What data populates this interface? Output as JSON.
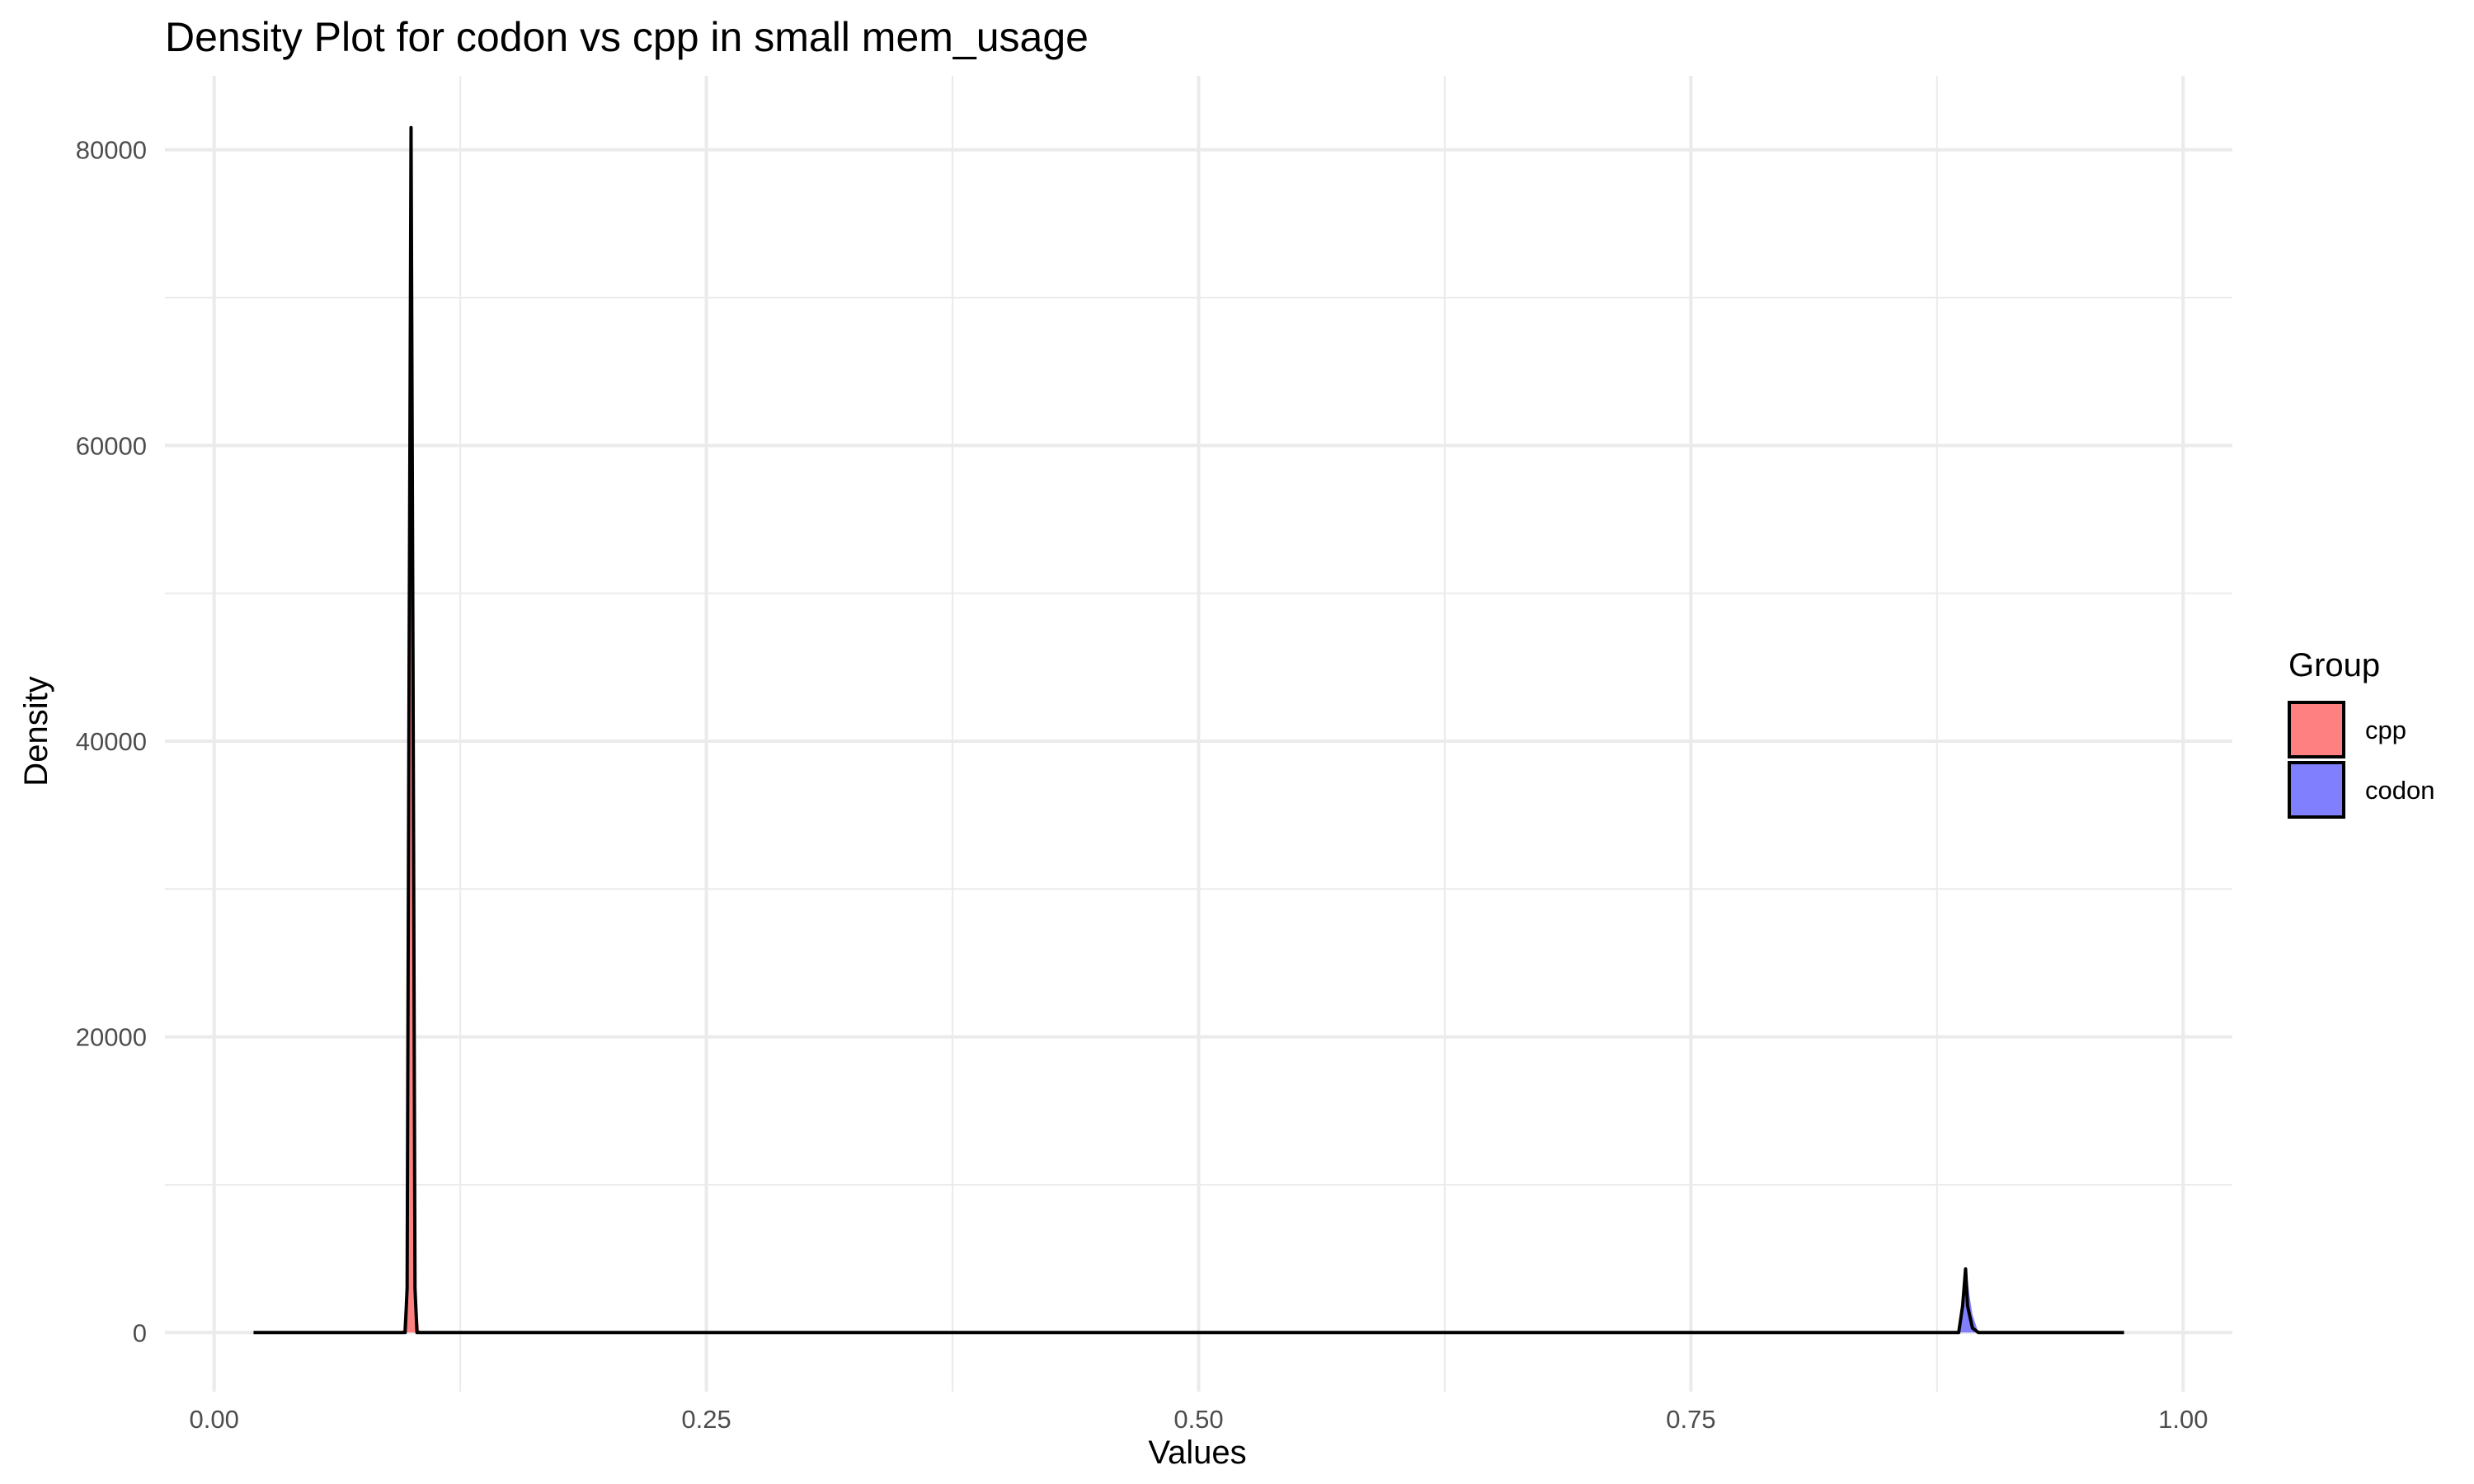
{
  "chart_data": {
    "type": "area",
    "title": "Density Plot for codon vs cpp in small mem_usage",
    "xlabel": "Values",
    "ylabel": "Density",
    "xlim": [
      -0.025,
      1.025
    ],
    "ylim": [
      -4000,
      85000
    ],
    "x_ticks": [
      0.0,
      0.25,
      0.5,
      0.75,
      1.0
    ],
    "x_tick_labels": [
      "0.00",
      "0.25",
      "0.50",
      "0.75",
      "1.00"
    ],
    "y_ticks": [
      0,
      20000,
      40000,
      60000,
      80000
    ],
    "y_tick_labels": [
      "0",
      "20000",
      "40000",
      "60000",
      "80000"
    ],
    "grid": true,
    "legend": {
      "title": "Group",
      "position": "right",
      "items": [
        {
          "label": "cpp",
          "color": "#ff8080"
        },
        {
          "label": "codon",
          "color": "#8080ff"
        }
      ]
    },
    "series": [
      {
        "name": "cpp",
        "color": "#ff8080",
        "x": [
          0.02,
          0.095,
          0.096,
          0.0975,
          0.099,
          0.1,
          0.101,
          0.1025,
          0.104,
          0.105,
          0.97
        ],
        "y": [
          0,
          0,
          200,
          3000,
          25000,
          58000,
          25000,
          3000,
          200,
          0,
          0
        ]
      },
      {
        "name": "codon",
        "color": "#8080ff",
        "x": [
          0.02,
          0.886,
          0.887,
          0.8885,
          0.8895,
          0.89,
          0.8905,
          0.8915,
          0.893,
          0.896,
          0.97
        ],
        "y": [
          0,
          0,
          300,
          2500,
          3600,
          3700,
          3600,
          2500,
          1200,
          0,
          0
        ]
      },
      {
        "name": "",
        "color": "#000000",
        "x": [
          0.02,
          0.097,
          0.098,
          0.099,
          0.1,
          0.101,
          0.102,
          0.103,
          0.886,
          0.888,
          0.8895,
          0.8905,
          0.893,
          0.896,
          0.97
        ],
        "y": [
          0,
          0,
          3000,
          45000,
          81500,
          45000,
          3000,
          0,
          0,
          1800,
          4300,
          1800,
          300,
          0,
          0
        ]
      }
    ]
  }
}
